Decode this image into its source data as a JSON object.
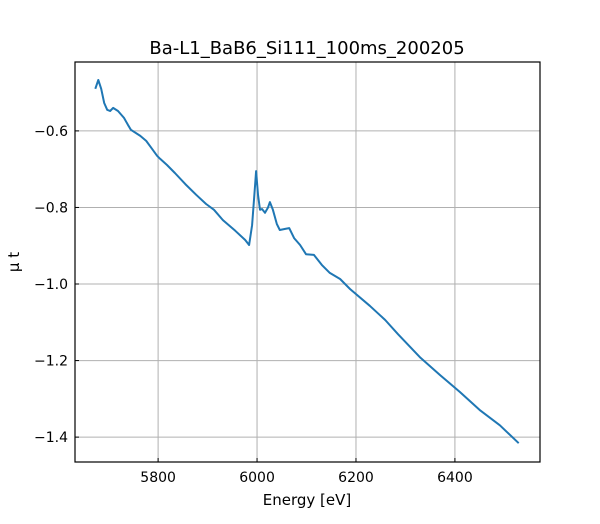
{
  "chart_data": {
    "type": "line",
    "title": "Ba-L1_BaB6_Si111_100ms_200205",
    "xlabel": "Energy [eV]",
    "ylabel": "μ t",
    "xlim": [
      5632,
      6572
    ],
    "ylim": [
      -1.465,
      -0.42
    ],
    "xticks": [
      5800,
      6000,
      6200,
      6400
    ],
    "xtick_labels": [
      "5800",
      "6000",
      "6200",
      "6400"
    ],
    "yticks": [
      -0.6,
      -0.8,
      -1.0,
      -1.2,
      -1.4
    ],
    "ytick_labels": [
      "−0.6",
      "−0.8",
      "−1.0",
      "−1.2",
      "−1.4"
    ],
    "grid": true,
    "series": [
      {
        "name": "mu_t",
        "color": "#1f77b4",
        "x": [
          5673,
          5679,
          5685,
          5691,
          5697,
          5703,
          5709,
          5719,
          5731,
          5739,
          5745,
          5764,
          5776,
          5786,
          5798,
          5804,
          5818,
          5834,
          5855,
          5877,
          5897,
          5913,
          5931,
          5956,
          5976,
          5984,
          5990,
          5996,
          5998,
          6002,
          6006,
          6010,
          6016,
          6022,
          6026,
          6032,
          6040,
          6046,
          6057,
          6065,
          6075,
          6087,
          6099,
          6115,
          6131,
          6147,
          6168,
          6188,
          6228,
          6259,
          6285,
          6329,
          6370,
          6410,
          6450,
          6491,
          6529
        ],
        "y": [
          -0.49,
          -0.467,
          -0.49,
          -0.527,
          -0.545,
          -0.548,
          -0.54,
          -0.548,
          -0.566,
          -0.584,
          -0.597,
          -0.613,
          -0.626,
          -0.644,
          -0.665,
          -0.673,
          -0.689,
          -0.71,
          -0.739,
          -0.767,
          -0.791,
          -0.806,
          -0.833,
          -0.861,
          -0.885,
          -0.898,
          -0.846,
          -0.741,
          -0.705,
          -0.767,
          -0.806,
          -0.804,
          -0.814,
          -0.801,
          -0.786,
          -0.806,
          -0.843,
          -0.859,
          -0.856,
          -0.854,
          -0.88,
          -0.898,
          -0.922,
          -0.924,
          -0.95,
          -0.971,
          -0.987,
          -1.013,
          -1.057,
          -1.094,
          -1.131,
          -1.191,
          -1.238,
          -1.282,
          -1.329,
          -1.369,
          -1.416
        ]
      }
    ]
  }
}
